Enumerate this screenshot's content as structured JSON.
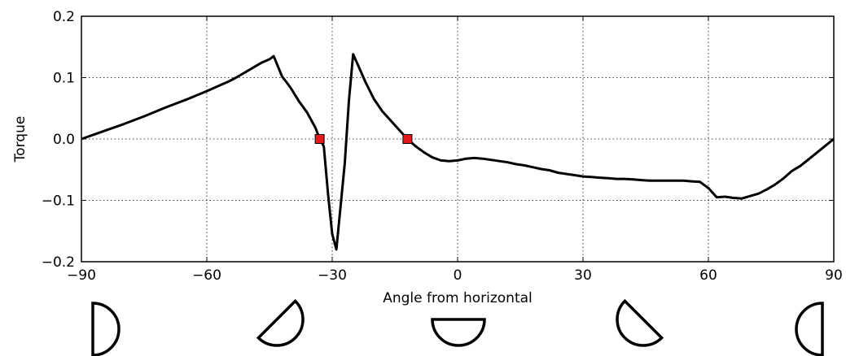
{
  "chart_data": {
    "type": "line",
    "xlabel": "Angle from horizontal",
    "ylabel": "Torque",
    "xlim": [
      -90,
      90
    ],
    "ylim": [
      -0.2,
      0.2
    ],
    "x_ticks": [
      -90,
      -60,
      -30,
      0,
      30,
      60,
      90
    ],
    "x_tick_labels": [
      "−90",
      "−60",
      "−30",
      "0",
      "30",
      "60",
      "90"
    ],
    "y_ticks": [
      -0.2,
      -0.1,
      0.0,
      0.1,
      0.2
    ],
    "y_tick_labels": [
      "−0.2",
      "−0.1",
      "0.0",
      "0.1",
      "0.2"
    ],
    "grid": true,
    "line_color": "#000000",
    "marker_color": "#e31a1c",
    "series": [
      {
        "x": [
          -90,
          -85,
          -80,
          -75,
          -70,
          -65,
          -60,
          -57,
          -55,
          -53,
          -51,
          -49,
          -47,
          -45,
          -44,
          -42,
          -40,
          -38,
          -36,
          -34,
          -33,
          -32,
          -31,
          -30,
          -29,
          -27,
          -26,
          -25,
          -24,
          -22,
          -20,
          -18,
          -16,
          -14,
          -12,
          -10,
          -8,
          -6,
          -4,
          -2,
          0,
          2,
          4,
          6,
          8,
          10,
          12,
          14,
          16,
          18,
          20,
          22,
          24,
          26,
          28,
          30,
          32,
          34,
          36,
          38,
          40,
          42,
          44,
          46,
          48,
          50,
          52,
          54,
          56,
          58,
          60,
          62,
          64,
          66,
          68,
          70,
          72,
          74,
          76,
          78,
          80,
          82,
          84,
          86,
          88,
          90
        ],
        "y": [
          0.0,
          0.012,
          0.024,
          0.037,
          0.051,
          0.064,
          0.078,
          0.087,
          0.093,
          0.1,
          0.108,
          0.116,
          0.124,
          0.13,
          0.135,
          0.102,
          0.084,
          0.062,
          0.043,
          0.018,
          0.0,
          -0.012,
          -0.09,
          -0.155,
          -0.18,
          -0.04,
          0.062,
          0.138,
          0.123,
          0.092,
          0.065,
          0.045,
          0.03,
          0.015,
          0.0,
          -0.012,
          -0.022,
          -0.03,
          -0.035,
          -0.036,
          -0.035,
          -0.032,
          -0.031,
          -0.032,
          -0.034,
          -0.036,
          -0.038,
          -0.041,
          -0.043,
          -0.046,
          -0.049,
          -0.051,
          -0.055,
          -0.057,
          -0.059,
          -0.061,
          -0.062,
          -0.063,
          -0.064,
          -0.065,
          -0.065,
          -0.066,
          -0.067,
          -0.068,
          -0.068,
          -0.068,
          -0.068,
          -0.068,
          -0.069,
          -0.07,
          -0.08,
          -0.095,
          -0.094,
          -0.096,
          -0.097,
          -0.093,
          -0.089,
          -0.082,
          -0.074,
          -0.064,
          -0.052,
          -0.044,
          -0.033,
          -0.022,
          -0.011,
          0.0
        ]
      }
    ],
    "equilibrium_points": [
      {
        "x": -33,
        "y": 0.0
      },
      {
        "x": -12,
        "y": 0.0
      }
    ],
    "orientation_glyphs": [
      {
        "angle": -90,
        "icon": "half-disk-flat-right-icon"
      },
      {
        "angle": -45,
        "icon": "half-disk-tilted-icon"
      },
      {
        "angle": 0,
        "icon": "half-disk-flat-top-icon"
      },
      {
        "angle": 45,
        "icon": "half-disk-tilted-icon"
      },
      {
        "angle": 90,
        "icon": "half-disk-flat-left-icon"
      }
    ]
  }
}
